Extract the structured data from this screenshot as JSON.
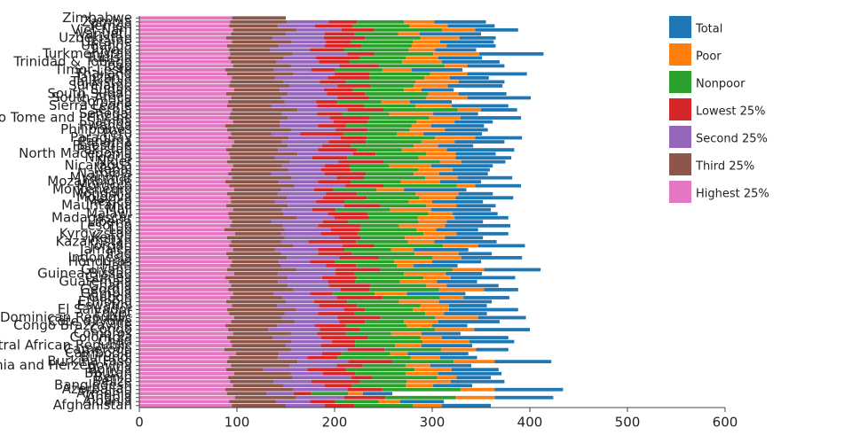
{
  "chart_data": {
    "type": "bar",
    "orientation": "horizontal",
    "stacked": true,
    "categories": [
      "Afghanistan",
      "Albania",
      "Angola",
      "Armenia",
      "Azerbaijan",
      "Bangladesh",
      "Belize",
      "Benin",
      "Bhutan",
      "Bolivia",
      "Bosnia and Herzegovina",
      "Burkina Faso",
      "Burundi",
      "Cambodia",
      "Cameroon",
      "Central African Republic",
      "Chad",
      "Colombia",
      "Comoros",
      "Congo",
      "Congo Brazzaville",
      "Côte d'Ivoire",
      "Dominican Republic",
      "Egypt",
      "El Salvador",
      "Eswatini",
      "Ethiopia",
      "Gabon",
      "Gambia",
      "Georgia",
      "Ghana",
      "Guatemala",
      "Guinea",
      "Guinea-Bissau",
      "Guyana",
      "Haiti",
      "Honduras",
      "Indonesia",
      "Iraq",
      "Jamaica",
      "Jordan",
      "Kazakhstan",
      "Kenya",
      "Kyrgyzstan",
      "Lao",
      "Lesotho",
      "Liberia",
      "Madagascar",
      "Malawi",
      "Mali",
      "Mauritania",
      "Mexico",
      "Moldova",
      "Mongolia",
      "Montenegro",
      "Morocco",
      "Mozambique",
      "Myanmar",
      "Namibia",
      "Nepal",
      "Nicaragua",
      "Niger",
      "Nigeria",
      "North Macedonia",
      "Pakistan",
      "Palestine",
      "Panama",
      "Paraguay",
      "Peru",
      "Philippines",
      "Rwanda",
      "Samoa",
      "Sao Tome and Principe",
      "Senegal",
      "Serbia",
      "Sierra Leone",
      "Somalia",
      "South Africa",
      "South Sudan",
      "Sudan",
      "Suriname",
      "Tajikistan",
      "Tanzania",
      "Thailand",
      "Timor-Leste",
      "Togo",
      "Trinidad & Tobago",
      "Tunisia",
      "Turkmenistan",
      "Tuvalu",
      "Uganda",
      "Ukraine",
      "Uzbekistan",
      "Vanuatu",
      "Viet Nam",
      "Yemen",
      "Zambia",
      "Zimbabwe"
    ],
    "series": [
      {
        "name": "Total",
        "color": "#1f77b4",
        "values": [
          50,
          45,
          60,
          30,
          70,
          40,
          55,
          35,
          65,
          48,
          42,
          58,
          38,
          62,
          33,
          52,
          46,
          68,
          40,
          57,
          36,
          63,
          49,
          44,
          71,
          39,
          54,
          47,
          60,
          35,
          53,
          41,
          66,
          37,
          58,
          45,
          50,
          62,
          34,
          56,
          48,
          64,
          39,
          53,
          43,
          67,
          37,
          55,
          46,
          61,
          40,
          52,
          59,
          35,
          64,
          47,
          42,
          56,
          50,
          38,
          63,
          45,
          57,
          41,
          69,
          36,
          51,
          48,
          60,
          44,
          54,
          39,
          62,
          46,
          37,
          58,
          43,
          65,
          49,
          33,
          56,
          47,
          40,
          61,
          52,
          38,
          59,
          45,
          66,
          42,
          50,
          55,
          37,
          63,
          44,
          48,
          53,
          0
        ]
      },
      {
        "name": "Poor",
        "color": "#ff7f0e",
        "values": [
          30,
          22,
          40,
          15,
          35,
          28,
          45,
          20,
          33,
          38,
          25,
          42,
          30,
          18,
          36,
          27,
          48,
          22,
          31,
          40,
          26,
          35,
          44,
          19,
          37,
          29,
          41,
          24,
          33,
          46,
          21,
          38,
          28,
          43,
          32,
          17,
          39,
          30,
          45,
          23,
          36,
          27,
          41,
          34,
          20,
          47,
          29,
          38,
          25,
          42,
          31,
          24,
          37,
          44,
          28,
          19,
          40,
          33,
          26,
          35,
          43,
          22,
          38,
          30,
          46,
          25,
          34,
          41,
          27,
          36,
          20,
          39,
          32,
          45,
          24,
          37,
          29,
          42,
          31,
          18,
          35,
          44,
          26,
          38,
          30,
          23,
          41,
          33,
          47,
          27,
          36,
          28,
          40,
          22,
          34,
          39,
          31,
          0
        ]
      },
      {
        "name": "Nonpoor",
        "color": "#2ca02c",
        "values": [
          60,
          45,
          72,
          38,
          80,
          55,
          48,
          66,
          52,
          70,
          44,
          63,
          75,
          50,
          58,
          41,
          69,
          54,
          47,
          77,
          62,
          40,
          56,
          73,
          49,
          65,
          53,
          59,
          43,
          71,
          57,
          46,
          68,
          51,
          74,
          42,
          61,
          55,
          64,
          48,
          70,
          53,
          45,
          67,
          58,
          39,
          72,
          50,
          62,
          56,
          47,
          66,
          54,
          60,
          44,
          75,
          51,
          63,
          49,
          69,
          41,
          58,
          73,
          52,
          46,
          64,
          57,
          70,
          55,
          43,
          67,
          50,
          61,
          48,
          76,
          53,
          45,
          59,
          65,
          52,
          44,
          71,
          56,
          62,
          49,
          68,
          54,
          47,
          60,
          66,
          51,
          63,
          57,
          45,
          70,
          58,
          48,
          0
        ]
      },
      {
        "name": "Lowest 25%",
        "color": "#d62728",
        "values": [
          30,
          25,
          42,
          18,
          36,
          28,
          50,
          22,
          33,
          40,
          27,
          45,
          31,
          20,
          38,
          35,
          24,
          48,
          29,
          41,
          32,
          26,
          44,
          37,
          21,
          39,
          34,
          47,
          23,
          30,
          43,
          28,
          36,
          19,
          46,
          31,
          25,
          40,
          35,
          27,
          33,
          49,
          22,
          38,
          30,
          44,
          26,
          35,
          41,
          24,
          37,
          29,
          45,
          32,
          20,
          39,
          34,
          28,
          42,
          31,
          25,
          46,
          36,
          23,
          40,
          30,
          38,
          27,
          44,
          33,
          29,
          35,
          41,
          26,
          37,
          48,
          22,
          32,
          39,
          30,
          34,
          27,
          43,
          36,
          24,
          40,
          31,
          45,
          28,
          35,
          38,
          26,
          42,
          30,
          33,
          39,
          29,
          0
        ]
      },
      {
        "name": "Second 25%",
        "color": "#9467bd",
        "values": [
          40,
          35,
          50,
          28,
          55,
          42,
          38,
          60,
          33,
          45,
          48,
          52,
          30,
          44,
          58,
          36,
          41,
          49,
          27,
          53,
          39,
          46,
          57,
          34,
          50,
          43,
          29,
          55,
          37,
          48,
          42,
          51,
          35,
          59,
          40,
          46,
          32,
          54,
          38,
          44,
          50,
          28,
          56,
          41,
          47,
          36,
          53,
          39,
          45,
          31,
          58,
          42,
          37,
          49,
          34,
          52,
          40,
          46,
          55,
          33,
          44,
          50,
          38,
          57,
          41,
          35,
          48,
          53,
          30,
          46,
          39,
          55,
          43,
          36,
          51,
          47,
          32,
          58,
          40,
          45,
          49,
          37,
          54,
          42,
          38,
          50,
          44,
          33,
          56,
          41,
          47,
          35,
          52,
          40,
          46,
          38,
          43,
          0
        ]
      },
      {
        "name": "Third 25%",
        "color": "#8c564b",
        "values": [
          55,
          48,
          62,
          40,
          70,
          52,
          45,
          66,
          58,
          38,
          60,
          72,
          50,
          44,
          68,
          55,
          63,
          47,
          59,
          41,
          53,
          65,
          49,
          57,
          70,
          46,
          61,
          54,
          42,
          67,
          58,
          50,
          64,
          45,
          71,
          52,
          48,
          60,
          56,
          43,
          66,
          51,
          59,
          47,
          62,
          54,
          40,
          69,
          57,
          50,
          63,
          45,
          58,
          52,
          48,
          67,
          55,
          61,
          44,
          59,
          50,
          64,
          46,
          70,
          53,
          57,
          49,
          62,
          41,
          65,
          56,
          48,
          60,
          53,
          67,
          45,
          58,
          51,
          63,
          47,
          62,
          55,
          44,
          68,
          50,
          59,
          46,
          57,
          64,
          42,
          53,
          61,
          48,
          56,
          65,
          50,
          58,
          55
        ]
      },
      {
        "name": "Highest 25%",
        "color": "#e377c2",
        "values": [
          95,
          92,
          98,
          90,
          88,
          96,
          93,
          91,
          97,
          89,
          94,
          90,
          92,
          99,
          87,
          95,
          93,
          90,
          96,
          91,
          88,
          94,
          97,
          92,
          90,
          95,
          89,
          93,
          96,
          91,
          94,
          92,
          88,
          97,
          90,
          93,
          95,
          91,
          89,
          96,
          92,
          94,
          90,
          98,
          87,
          93,
          95,
          92,
          91,
          96,
          89,
          94,
          93,
          90,
          97,
          92,
          88,
          95,
          91,
          94,
          96,
          90,
          93,
          92,
          89,
          95,
          97,
          91,
          94,
          90,
          88,
          96,
          92,
          93,
          95,
          90,
          91,
          94,
          89,
          97,
          92,
          93,
          95,
          90,
          88,
          96,
          94,
          91,
          93,
          92,
          90,
          95,
          89,
          94,
          96,
          92,
          93,
          95
        ]
      }
    ],
    "xlim": [
      0,
      600
    ],
    "xticks": [
      0,
      100,
      200,
      300,
      400,
      500,
      600
    ],
    "legend": "top-right"
  }
}
